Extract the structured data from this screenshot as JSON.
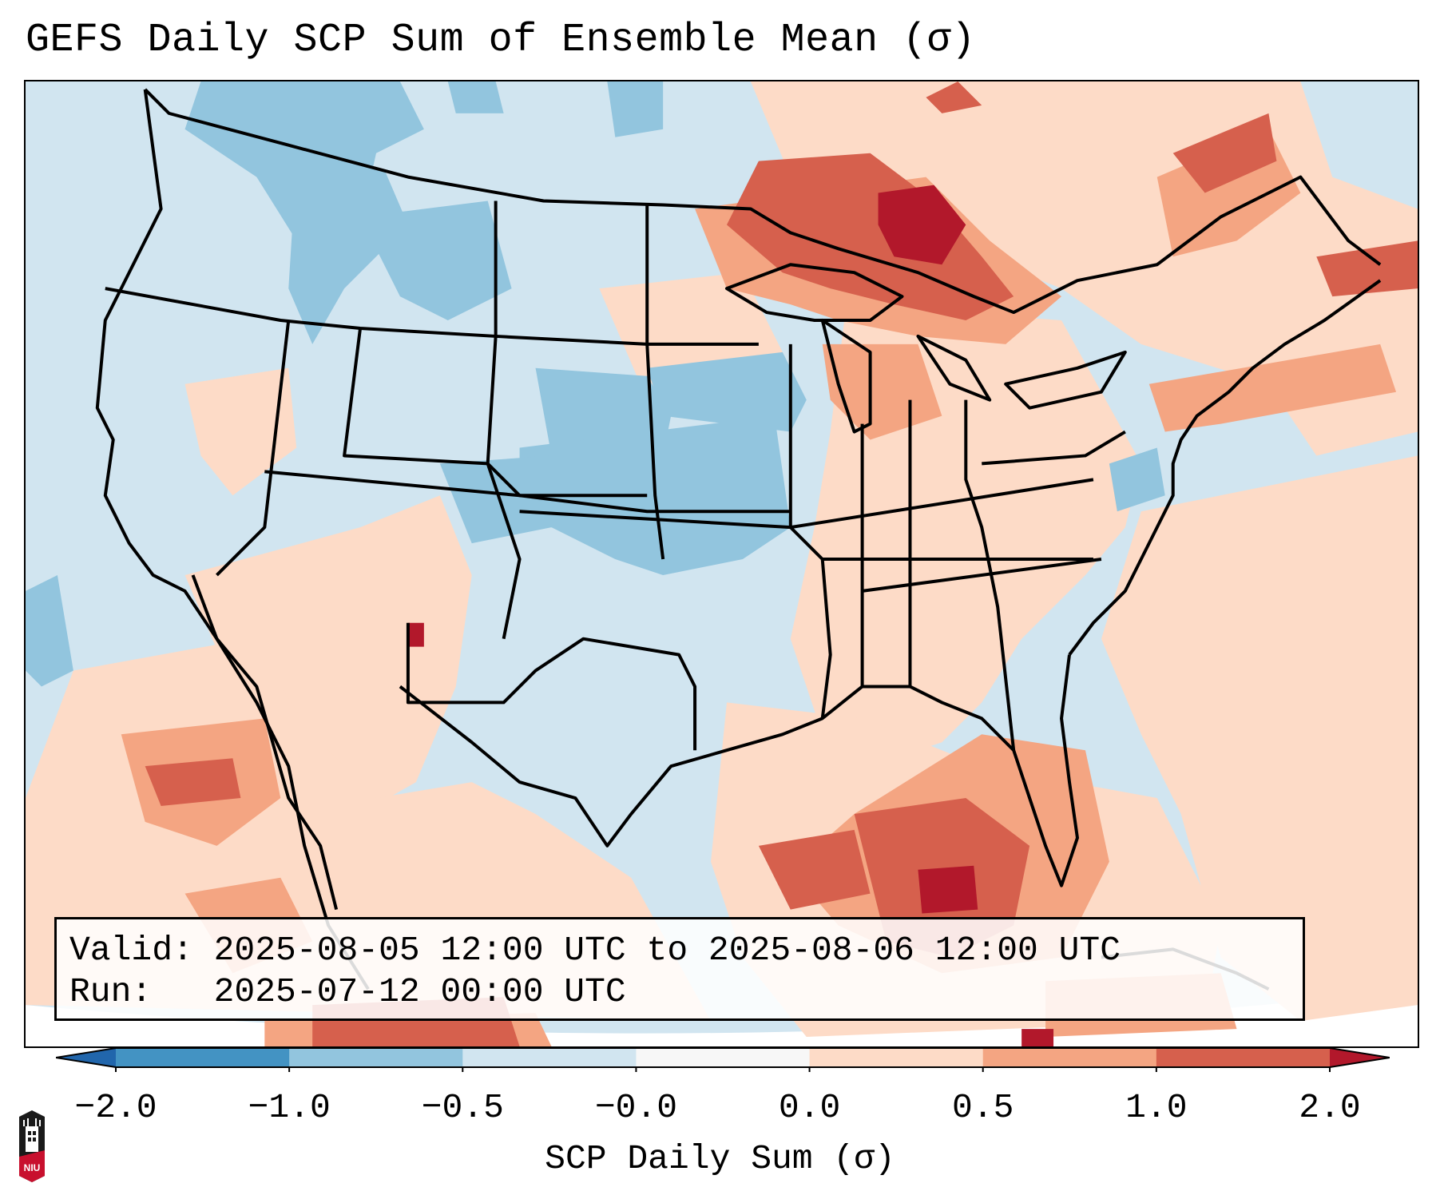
{
  "title": "GEFS Daily SCP Sum of Ensemble Mean (σ)",
  "info_box": {
    "valid_line": "Valid: 2025-08-05 12:00 UTC to 2025-08-06 12:00 UTC",
    "run_line": "Run:   2025-07-12 00:00 UTC"
  },
  "colorbar": {
    "label": "SCP Daily Sum (σ)",
    "ticks": [
      "−2.0",
      "−1.0",
      "−0.5",
      "−0.0",
      "0.0",
      "0.5",
      "1.0",
      "2.0"
    ],
    "bins": [
      {
        "range": "< -2.0",
        "color": "#2166ac",
        "extend": "min"
      },
      {
        "range": "-2.0 to -1.0",
        "color": "#4393c3"
      },
      {
        "range": "-1.0 to -0.5",
        "color": "#92c5de"
      },
      {
        "range": "-0.5 to -0.0",
        "color": "#d1e5f0"
      },
      {
        "range": "-0.0 to 0.0",
        "color": "#f7f7f7"
      },
      {
        "range": "0.0 to 0.5",
        "color": "#fddbc7"
      },
      {
        "range": "0.5 to 1.0",
        "color": "#f4a582"
      },
      {
        "range": "1.0 to 2.0",
        "color": "#d6604d"
      },
      {
        "range": "> 2.0",
        "color": "#b2182b",
        "extend": "max"
      }
    ]
  },
  "map": {
    "region": "Contiguous United States, southern Canada, northern Mexico, Gulf of Mexico, western Atlantic",
    "field": "SCP daily sum anomaly (σ)",
    "highlights": [
      {
        "area": "Upper Michigan / Lake Superior",
        "category": "> 2.0"
      },
      {
        "area": "Northern Ontario / Minnesota",
        "category": "1.0 to 2.0"
      },
      {
        "area": "Central Gulf of Mexico",
        "category": "1.0 to 2.0, local > 2.0"
      },
      {
        "area": "Central Plains (Nebraska, Kansas, Iowa)",
        "category": "-1.0 to -0.5"
      },
      {
        "area": "Northern Rockies (Idaho, Montana)",
        "category": "-1.0 to -0.5"
      },
      {
        "area": "Desert Southwest / Mexico",
        "category": "0.0 to 1.0"
      }
    ]
  },
  "logo": {
    "text": "NIU"
  }
}
